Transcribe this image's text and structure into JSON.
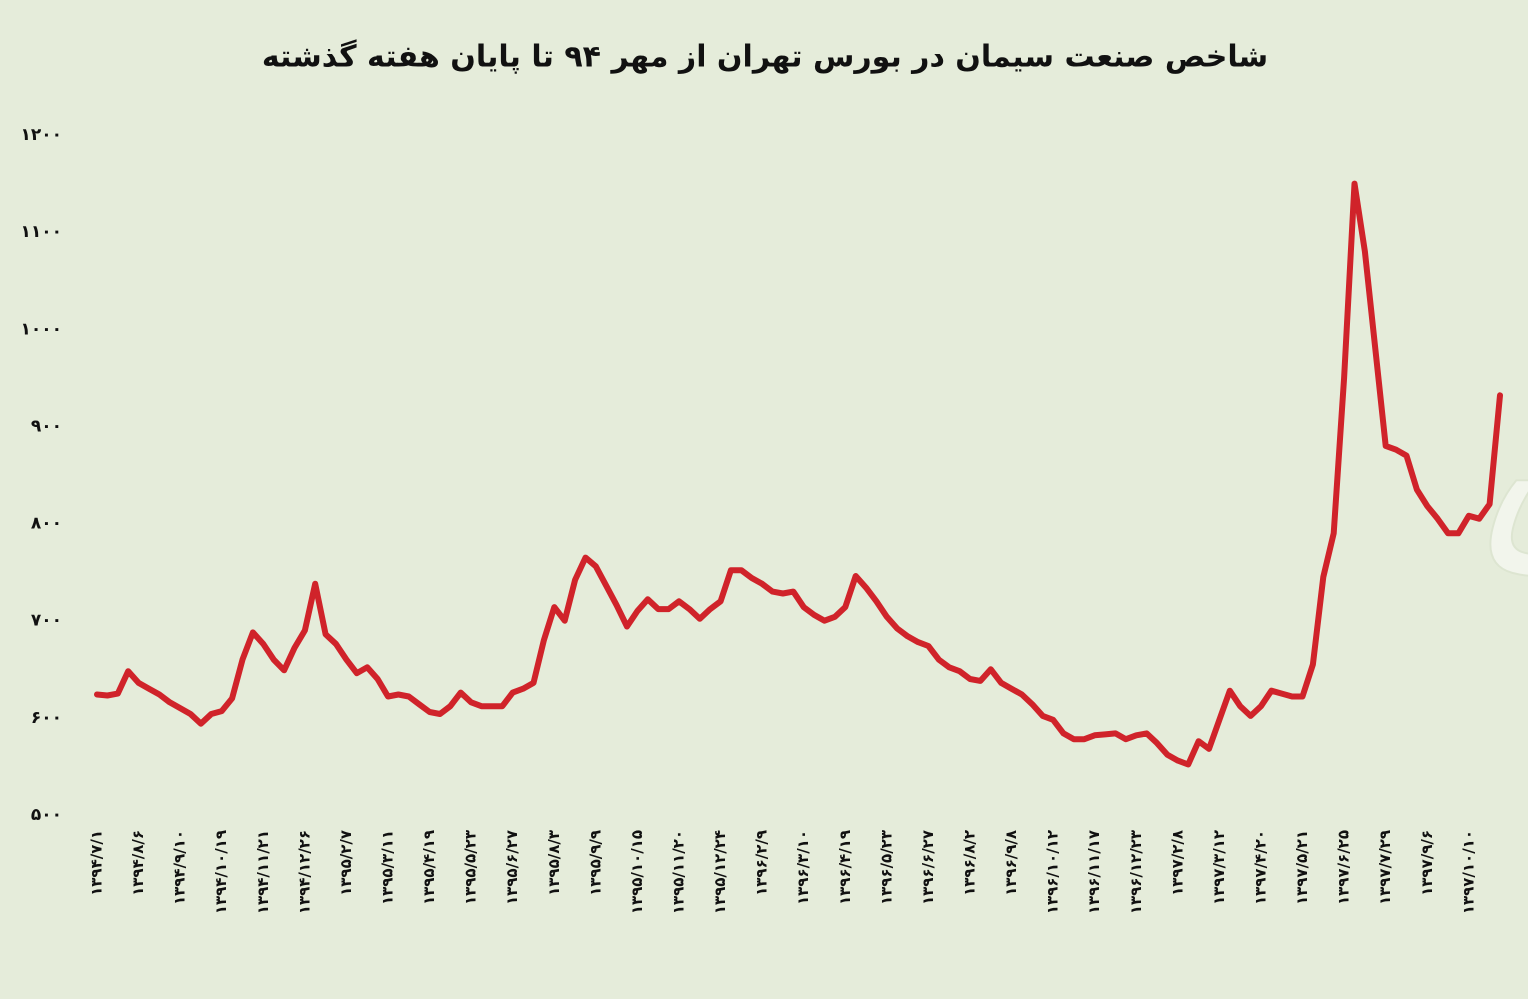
{
  "chart_data": {
    "type": "line",
    "title": "شاخص صنعت سیمان در بورس تهران از مهر ۹۴ تا پایان هفته گذشته",
    "watermark": "دنیای بورس",
    "categories": [
      "۱۳۹۴/۷/۱",
      null,
      null,
      null,
      "۱۳۹۴/۸/۶",
      null,
      null,
      null,
      "۱۳۹۴/۹/۱۰",
      null,
      null,
      null,
      "۱۳۹۴/۱۰/۱۹",
      null,
      null,
      null,
      "۱۳۹۴/۱۱/۲۱",
      null,
      null,
      null,
      "۱۳۹۴/۱۲/۲۶",
      null,
      null,
      null,
      "۱۳۹۵/۲/۷",
      null,
      null,
      null,
      "۱۳۹۵/۳/۱۱",
      null,
      null,
      null,
      "۱۳۹۵/۴/۱۹",
      null,
      null,
      null,
      "۱۳۹۵/۵/۲۳",
      null,
      null,
      null,
      "۱۳۹۵/۶/۲۷",
      null,
      null,
      null,
      "۱۳۹۵/۸/۳",
      null,
      null,
      null,
      "۱۳۹۵/۹/۹",
      null,
      null,
      null,
      "۱۳۹۵/۱۰/۱۵",
      null,
      null,
      null,
      "۱۳۹۵/۱۱/۲۰",
      null,
      null,
      null,
      "۱۳۹۵/۱۲/۲۴",
      null,
      null,
      null,
      "۱۳۹۶/۲/۹",
      null,
      null,
      null,
      "۱۳۹۶/۳/۱۰",
      null,
      null,
      null,
      "۱۳۹۶/۴/۱۹",
      null,
      null,
      null,
      "۱۳۹۶/۵/۲۳",
      null,
      null,
      null,
      "۱۳۹۶/۶/۲۷",
      null,
      null,
      null,
      "۱۳۹۶/۸/۲",
      null,
      null,
      null,
      "۱۳۹۶/۹/۸",
      null,
      null,
      null,
      "۱۳۹۶/۱۰/۱۲",
      null,
      null,
      null,
      "۱۳۹۶/۱۱/۱۷",
      null,
      null,
      null,
      "۱۳۹۶/۱۲/۲۳",
      null,
      null,
      null,
      "۱۳۹۷/۲/۸",
      null,
      null,
      null,
      "۱۳۹۷/۳/۱۲",
      null,
      null,
      null,
      "۱۳۹۷/۴/۲۰",
      null,
      null,
      null,
      "۱۳۹۷/۵/۲۱",
      null,
      null,
      null,
      "۱۳۹۷/۶/۲۵",
      null,
      null,
      null,
      "۱۳۹۷/۷/۲۹",
      null,
      null,
      null,
      "۱۳۹۷/۹/۶",
      null,
      null,
      null,
      "۱۳۹۷/۱۰/۱۰",
      null,
      null,
      null
    ],
    "series": [
      {
        "color": "#d0232a",
        "values": [
          624,
          623,
          625,
          648,
          636,
          630,
          624,
          616,
          610,
          604,
          594,
          604,
          607,
          620,
          660,
          688,
          676,
          660,
          649,
          672,
          690,
          738,
          686,
          676,
          660,
          646,
          652,
          640,
          622,
          624,
          622,
          614,
          606,
          604,
          612,
          626,
          616,
          612,
          612,
          612,
          626,
          630,
          636,
          680,
          714,
          700,
          742,
          765,
          756,
          736,
          716,
          694,
          710,
          722,
          712,
          712,
          720,
          712,
          702,
          712,
          720,
          752,
          752,
          744,
          738,
          730,
          728,
          730,
          714,
          706,
          700,
          704,
          714,
          746,
          734,
          720,
          704,
          692,
          684,
          678,
          674,
          660,
          652,
          648,
          640,
          638,
          650,
          636,
          630,
          624,
          614,
          602,
          598,
          584,
          578,
          578,
          582,
          583,
          584,
          578,
          582,
          584,
          574,
          562,
          556,
          552,
          576,
          568,
          598,
          628,
          612,
          602,
          612,
          628,
          625,
          622,
          622,
          655,
          745,
          790,
          950,
          1150,
          1080,
          980,
          880,
          876,
          870,
          835,
          818,
          805,
          790,
          790,
          808,
          805,
          820,
          932
        ]
      }
    ],
    "ylim": [
      500,
      1200
    ],
    "yticks": [
      {
        "value": 500,
        "label": "۵۰۰"
      },
      {
        "value": 600,
        "label": "۶۰۰"
      },
      {
        "value": 700,
        "label": "۷۰۰"
      },
      {
        "value": 800,
        "label": "۸۰۰"
      },
      {
        "value": 900,
        "label": "۹۰۰"
      },
      {
        "value": 1000,
        "label": "۱۰۰۰"
      },
      {
        "value": 1100,
        "label": "۱۱۰۰"
      },
      {
        "value": 1200,
        "label": "۱۲۰۰"
      }
    ],
    "grid": false
  }
}
